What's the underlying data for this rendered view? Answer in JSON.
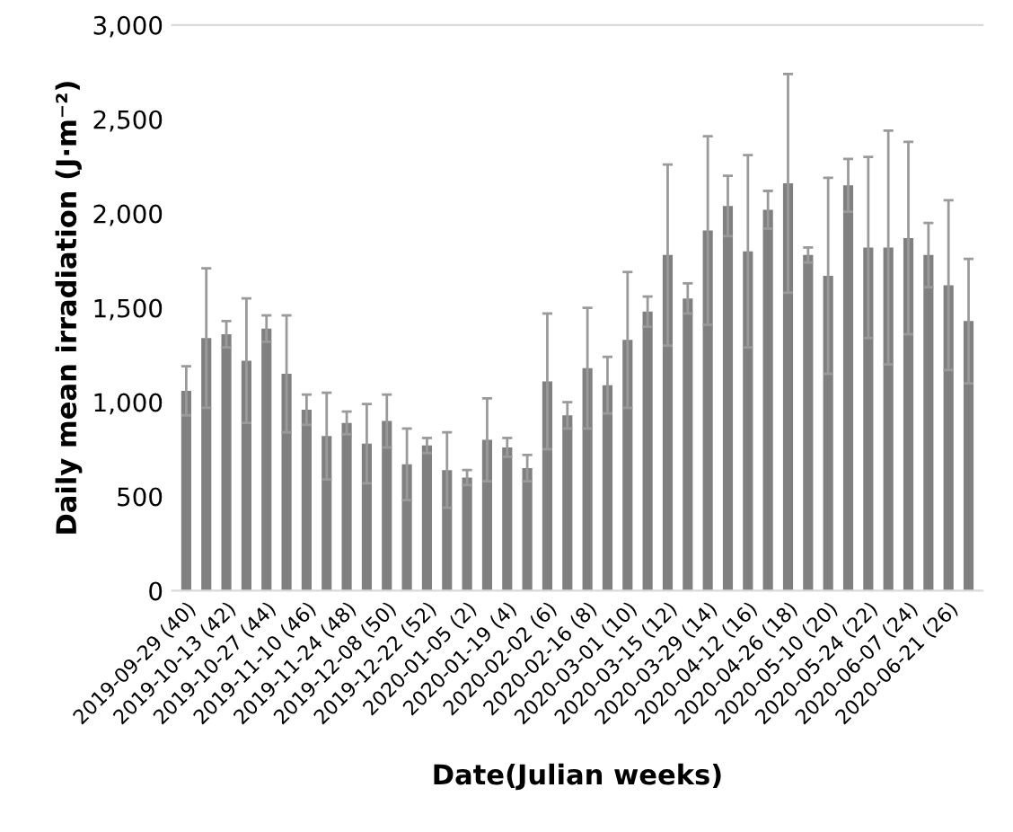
{
  "chart_data": {
    "type": "bar",
    "xlabel": "Date(Julian weeks)",
    "ylabel": "Daily mean irradiation (J·m⁻²)",
    "categories": [
      "2019-09-29 (40)",
      null,
      "2019-10-13 (42)",
      null,
      "2019-10-27 (44)",
      null,
      "2019-11-10 (46)",
      null,
      "2019-11-24 (48)",
      null,
      "2019-12-08 (50)",
      null,
      "2019-12-22 (52)",
      null,
      "2020-01-05 (2)",
      null,
      "2020-01-19 (4)",
      null,
      "2020-02-02 (6)",
      null,
      "2020-02-16 (8)",
      null,
      "2020-03-01 (10)",
      null,
      "2020-03-15 (12)",
      null,
      "2020-03-29 (14)",
      null,
      "2020-04-12 (16)",
      null,
      "2020-04-26 (18)",
      null,
      "2020-05-10 (20)",
      null,
      "2020-05-24 (22)",
      null,
      "2020-06-07 (24)",
      null,
      "2020-06-21 (26)",
      null
    ],
    "series": [
      {
        "color": "#808080",
        "values": [
          1060,
          1340,
          1360,
          1220,
          1390,
          1150,
          960,
          820,
          890,
          780,
          900,
          670,
          770,
          640,
          600,
          800,
          760,
          650,
          1110,
          930,
          1180,
          1090,
          1330,
          1480,
          1780,
          1550,
          1910,
          2040,
          1800,
          2020,
          2160,
          1780,
          1670,
          2150,
          1820,
          1820,
          1870,
          1780,
          1620,
          1430
        ],
        "errors": [
          130,
          370,
          70,
          330,
          70,
          310,
          80,
          230,
          60,
          210,
          140,
          190,
          40,
          200,
          40,
          220,
          50,
          70,
          360,
          70,
          320,
          150,
          360,
          80,
          480,
          80,
          500,
          160,
          510,
          100,
          580,
          40,
          520,
          140,
          480,
          620,
          510,
          170,
          450,
          330
        ]
      }
    ],
    "ylim": [
      0,
      3000
    ],
    "yticks": [
      0,
      500,
      {
        "value": 1000,
        "label": "1,000"
      },
      {
        "value": 1500,
        "label": "1,500"
      },
      {
        "value": 2000,
        "label": "2,000"
      },
      {
        "value": 2500,
        "label": "2,500"
      },
      {
        "value": 3000,
        "label": "3,000"
      }
    ],
    "grid": false
  }
}
